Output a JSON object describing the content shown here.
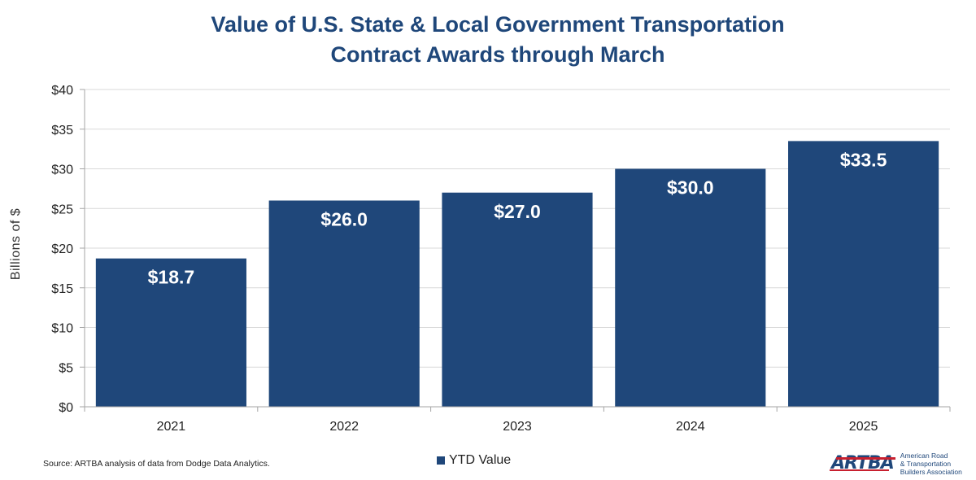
{
  "chart_data": {
    "type": "bar",
    "title": "Value of U.S. State & Local Government Transportation Contract Awards through March",
    "title_lines": [
      "Value of U.S. State & Local Government Transportation",
      "Contract Awards through March"
    ],
    "xlabel": "",
    "ylabel": "Billions  of  $",
    "categories": [
      "2021",
      "2022",
      "2023",
      "2024",
      "2025"
    ],
    "series": [
      {
        "name": "YTD Value",
        "color": "#1F477A",
        "values": [
          18.7,
          26.0,
          27.0,
          30.0,
          33.5
        ],
        "data_labels": [
          "$18.7",
          "$26.0",
          "$27.0",
          "$30.0",
          "$33.5"
        ]
      }
    ],
    "ylim": [
      0,
      40
    ],
    "yticks": [
      0,
      5,
      10,
      15,
      20,
      25,
      30,
      35,
      40
    ],
    "ytick_labels": [
      "$0",
      "$5",
      "$10",
      "$15",
      "$20",
      "$25",
      "$30",
      "$35",
      "$40"
    ],
    "grid": true,
    "legend_position": "bottom-center"
  },
  "footer": {
    "source": "Source: ARTBA analysis of data from Dodge Data Analytics.",
    "legend_label": "YTD Value"
  },
  "logo": {
    "mark": "ARTBA",
    "lines": [
      "American Road",
      "& Transportation",
      "Builders Association"
    ]
  }
}
